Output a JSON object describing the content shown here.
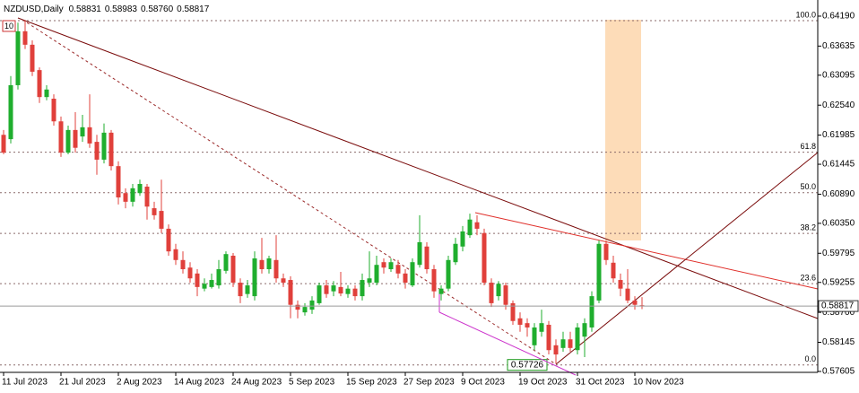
{
  "chart_data": {
    "type": "candlestick",
    "title": "NZDUSD,Daily",
    "quote": {
      "open": "0.58831",
      "high": "0.58983",
      "low": "0.58760",
      "close": "0.58817"
    },
    "marker": "10",
    "up_color": "#1fae2e",
    "down_color": "#e0403b",
    "categories": [
      "11 Jul 2023",
      null,
      null,
      null,
      null,
      null,
      null,
      null,
      "21 Jul 2023",
      null,
      null,
      null,
      null,
      null,
      null,
      null,
      "2 Aug 2023",
      null,
      null,
      null,
      null,
      null,
      null,
      null,
      "14 Aug 2023",
      null,
      null,
      null,
      null,
      null,
      null,
      null,
      "24 Aug 2023",
      null,
      null,
      null,
      null,
      null,
      null,
      null,
      "5 Sep 2023",
      null,
      null,
      null,
      null,
      null,
      null,
      null,
      "15 Sep 2023",
      null,
      null,
      null,
      null,
      null,
      null,
      null,
      "27 Sep 2023",
      null,
      null,
      null,
      null,
      null,
      null,
      null,
      "9 Oct 2023",
      null,
      null,
      null,
      null,
      null,
      null,
      null,
      "19 Oct 2023",
      null,
      null,
      null,
      null,
      null,
      null,
      null,
      "31 Oct 2023",
      null,
      null,
      null,
      null,
      null,
      null,
      null,
      "10 Nov 2023",
      null
    ],
    "open": [
      0.6199,
      0.6191,
      0.6291,
      0.6391,
      0.6366,
      0.6319,
      0.6269,
      0.6266,
      0.6224,
      0.6166,
      0.6208,
      0.6196,
      0.6213,
      0.6186,
      0.6153,
      0.6203,
      0.6141,
      0.6091,
      0.6075,
      0.6091,
      0.6103,
      0.6063,
      0.6058,
      0.6025,
      0.5987,
      0.5967,
      0.5953,
      0.5942,
      0.5914,
      0.5917,
      0.592,
      0.5947,
      0.5975,
      0.5925,
      0.5904,
      0.59,
      0.5967,
      0.595,
      0.5967,
      0.5933,
      0.593,
      0.5884,
      0.587,
      0.5875,
      0.5887,
      0.592,
      0.5909,
      0.5917,
      0.5904,
      0.5914,
      0.59,
      0.5925,
      0.5925,
      0.5963,
      0.595,
      0.5958,
      0.5942,
      0.592,
      0.5958,
      0.5992,
      0.595,
      0.5904,
      0.5914,
      0.5963,
      0.5992,
      0.6013,
      0.6037,
      0.6017,
      0.5925,
      0.59,
      0.592,
      0.5887,
      0.5859,
      0.585,
      0.5809,
      0.5834,
      0.5847,
      0.5809,
      0.5804,
      0.582,
      0.58,
      0.5825,
      0.5842,
      0.5892,
      0.5997,
      0.5962,
      0.593,
      0.5914,
      0.5892,
      0.58831
    ],
    "high": [
      0.6208,
      0.6308,
      0.6407,
      0.6412,
      0.6374,
      0.6324,
      0.6291,
      0.6274,
      0.6233,
      0.6216,
      0.6241,
      0.6236,
      0.6274,
      0.6199,
      0.622,
      0.6208,
      0.615,
      0.61,
      0.6108,
      0.6116,
      0.6108,
      0.6075,
      0.6116,
      0.6033,
      0.5997,
      0.5983,
      0.5963,
      0.595,
      0.5933,
      0.5942,
      0.5967,
      0.5983,
      0.598,
      0.5933,
      0.593,
      0.5983,
      0.6008,
      0.5975,
      0.6013,
      0.5942,
      0.5937,
      0.5892,
      0.5887,
      0.59,
      0.5925,
      0.593,
      0.5928,
      0.5945,
      0.592,
      0.592,
      0.5942,
      0.5983,
      0.5975,
      0.597,
      0.597,
      0.5967,
      0.595,
      0.597,
      0.605,
      0.6,
      0.5958,
      0.592,
      0.5975,
      0.6008,
      0.603,
      0.6053,
      0.605,
      0.6025,
      0.5933,
      0.5928,
      0.5925,
      0.5892,
      0.587,
      0.5859,
      0.585,
      0.5875,
      0.5854,
      0.582,
      0.5834,
      0.5834,
      0.585,
      0.5859,
      0.5909,
      0.6003,
      0.6003,
      0.5975,
      0.5942,
      0.595,
      0.59,
      0.58983
    ],
    "low": [
      0.6163,
      0.6183,
      0.6283,
      0.6358,
      0.6308,
      0.6258,
      0.6263,
      0.6216,
      0.6158,
      0.6163,
      0.6166,
      0.6186,
      0.6175,
      0.6125,
      0.6146,
      0.6133,
      0.607,
      0.6063,
      0.6066,
      0.6086,
      0.6042,
      0.6042,
      0.6017,
      0.5975,
      0.5958,
      0.5942,
      0.5925,
      0.59,
      0.5909,
      0.5914,
      0.5914,
      0.5942,
      0.5917,
      0.5887,
      0.5897,
      0.5892,
      0.5942,
      0.5942,
      0.5925,
      0.5917,
      0.5859,
      0.5859,
      0.5864,
      0.5867,
      0.5884,
      0.5897,
      0.59,
      0.59,
      0.5897,
      0.5892,
      0.5892,
      0.5917,
      0.592,
      0.5942,
      0.5945,
      0.5933,
      0.5914,
      0.5917,
      0.5953,
      0.5942,
      0.5897,
      0.5892,
      0.5909,
      0.5958,
      0.5983,
      0.6008,
      0.6013,
      0.592,
      0.588,
      0.5892,
      0.5875,
      0.5847,
      0.5834,
      0.5825,
      0.58,
      0.5825,
      0.5792,
      0.5775,
      0.5797,
      0.5797,
      0.5792,
      0.5787,
      0.5834,
      0.5887,
      0.5958,
      0.5925,
      0.59,
      0.5887,
      0.5875,
      0.5876
    ],
    "close": [
      0.6166,
      0.6291,
      0.6391,
      0.6366,
      0.6316,
      0.6269,
      0.6283,
      0.6224,
      0.6166,
      0.6208,
      0.6175,
      0.6213,
      0.6183,
      0.6153,
      0.6203,
      0.6141,
      0.6083,
      0.6075,
      0.61,
      0.6108,
      0.6066,
      0.605,
      0.6025,
      0.5983,
      0.5967,
      0.595,
      0.5933,
      0.5917,
      0.5923,
      0.593,
      0.595,
      0.5978,
      0.5925,
      0.59,
      0.592,
      0.597,
      0.595,
      0.597,
      0.5933,
      0.5925,
      0.5884,
      0.5875,
      0.588,
      0.5892,
      0.592,
      0.5904,
      0.592,
      0.5905,
      0.5914,
      0.59,
      0.593,
      0.5933,
      0.5958,
      0.5953,
      0.5963,
      0.5942,
      0.5925,
      0.5963,
      0.6,
      0.595,
      0.5909,
      0.5914,
      0.5967,
      0.5997,
      0.602,
      0.6042,
      0.6025,
      0.5925,
      0.5887,
      0.5923,
      0.5884,
      0.5854,
      0.5847,
      0.5842,
      0.5842,
      0.585,
      0.58,
      0.5792,
      0.582,
      0.5804,
      0.5842,
      0.585,
      0.59,
      0.5997,
      0.5967,
      0.5933,
      0.5914,
      0.5892,
      0.5884,
      0.58817
    ],
    "ylim": [
      0.57588,
      0.64489
    ],
    "yticks": [
      {
        "value": 0.6419,
        "label": "0.64190"
      },
      0.63635,
      0.63095,
      {
        "value": 0.6254,
        "label": "0.62540"
      },
      0.61985,
      0.61445,
      {
        "value": 0.6089,
        "label": "0.60890"
      },
      {
        "value": 0.6035,
        "label": "0.60350"
      },
      0.59795,
      0.59255,
      {
        "value": 0.587,
        "label": "0.58700"
      },
      0.58145,
      0.57605
    ],
    "fibonacci": {
      "levels": [
        "100.0",
        "61.8",
        "50.0",
        "38.2",
        "23.6",
        "0.0"
      ],
      "prices": [
        0.64107,
        0.61669,
        0.60917,
        0.60164,
        0.59232,
        0.57726
      ]
    }
  }
}
